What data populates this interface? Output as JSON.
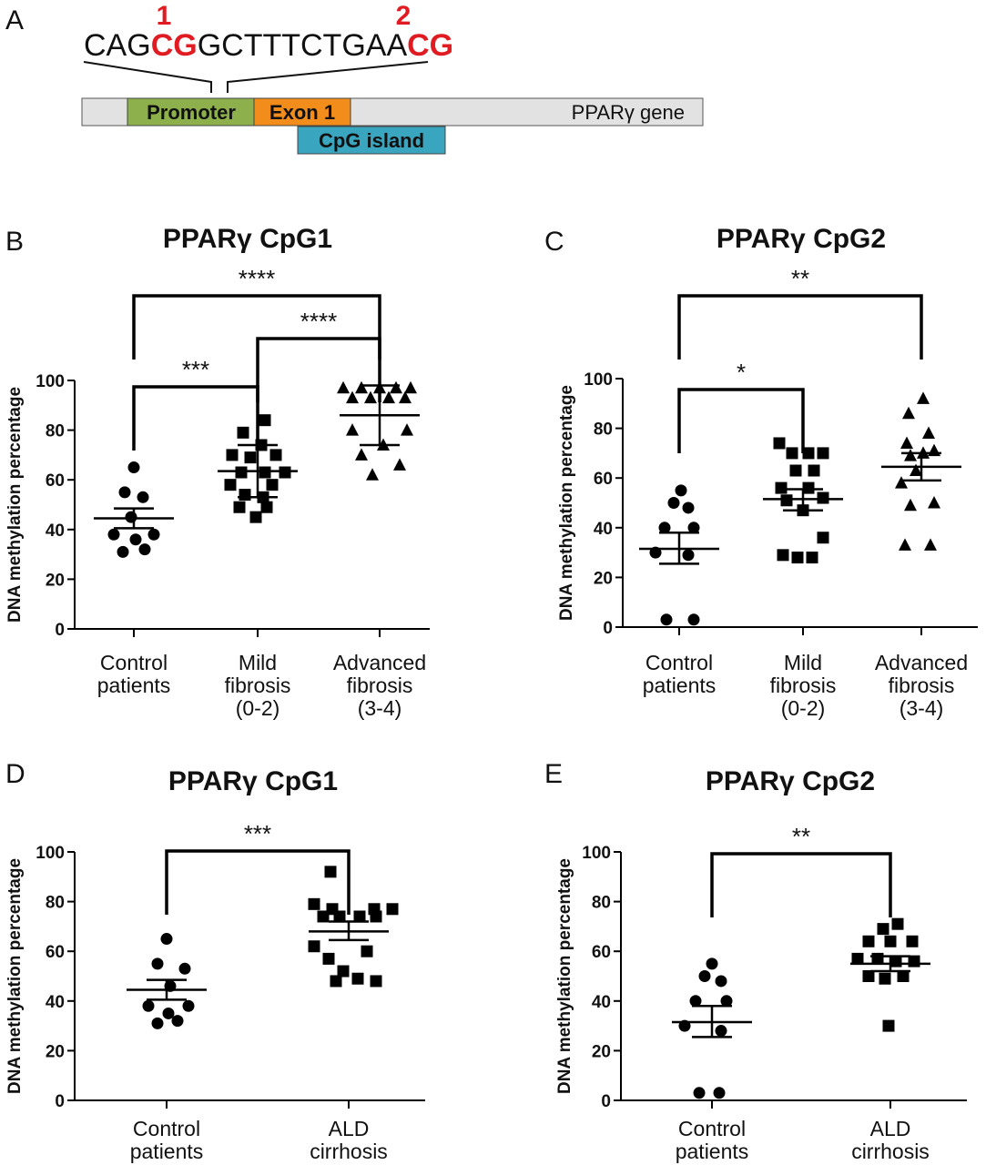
{
  "panel_a": {
    "label": "A",
    "sequence": [
      {
        "text": "CAG",
        "highlight": false
      },
      {
        "text": "CG",
        "highlight": true,
        "number": "1"
      },
      {
        "text": "GCTTTCTGAA",
        "highlight": false
      },
      {
        "text": "CG",
        "highlight": true,
        "number": "2"
      }
    ],
    "gene_name": "PPARγ gene",
    "promoter_label": "Promoter",
    "exon_label": "Exon 1",
    "cpg_island_label": "CpG island",
    "colors": {
      "promoter": "#8db04d",
      "exon": "#f28c1b",
      "cpg_island": "#3aa5bf",
      "gene_bar": "#e2e2e2",
      "cg_highlight": "#e01b22"
    }
  },
  "chart_data": [
    {
      "panel": "B",
      "type": "scatter",
      "title": "PPARγ CpG1",
      "ylabel": "DNA methylation percentage",
      "ylim": [
        0,
        100
      ],
      "yticks": [
        0,
        20,
        40,
        60,
        80,
        100
      ],
      "categories": [
        {
          "lines": [
            "Control",
            "patients"
          ]
        },
        {
          "lines": [
            "Mild",
            "fibrosis",
            "(0-2)"
          ]
        },
        {
          "lines": [
            "Advanced",
            "fibrosis",
            "(3-4)"
          ]
        }
      ],
      "groups": [
        {
          "marker": "circle",
          "mean": 44.5,
          "sem": [
            40.5,
            48.5
          ],
          "points": [
            {
              "dx": 0,
              "y": 65
            },
            {
              "dx": -10,
              "y": 55
            },
            {
              "dx": 10,
              "y": 53
            },
            {
              "dx": -3,
              "y": 45
            },
            {
              "dx": -22,
              "y": 38
            },
            {
              "dx": 22,
              "y": 38
            },
            {
              "dx": 2,
              "y": 36
            },
            {
              "dx": -12,
              "y": 31
            },
            {
              "dx": 12,
              "y": 32
            }
          ]
        },
        {
          "marker": "square",
          "mean": 63.5,
          "sem": [
            53,
            74
          ],
          "points": [
            {
              "dx": 8,
              "y": 84
            },
            {
              "dx": -16,
              "y": 79
            },
            {
              "dx": 4,
              "y": 74
            },
            {
              "dx": -28,
              "y": 70
            },
            {
              "dx": 20,
              "y": 70
            },
            {
              "dx": -8,
              "y": 69
            },
            {
              "dx": -18,
              "y": 63
            },
            {
              "dx": 8,
              "y": 63
            },
            {
              "dx": 30,
              "y": 63
            },
            {
              "dx": -30,
              "y": 58
            },
            {
              "dx": 16,
              "y": 58
            },
            {
              "dx": -14,
              "y": 54
            },
            {
              "dx": 6,
              "y": 53
            },
            {
              "dx": -20,
              "y": 49
            },
            {
              "dx": 10,
              "y": 49
            },
            {
              "dx": -2,
              "y": 45
            }
          ]
        },
        {
          "marker": "triangle",
          "mean": 86,
          "sem": [
            74,
            98
          ],
          "points": [
            {
              "dx": -40,
              "y": 97
            },
            {
              "dx": -20,
              "y": 97
            },
            {
              "dx": 0,
              "y": 97
            },
            {
              "dx": 18,
              "y": 97
            },
            {
              "dx": 34,
              "y": 97
            },
            {
              "dx": -30,
              "y": 93
            },
            {
              "dx": -10,
              "y": 93
            },
            {
              "dx": 10,
              "y": 93
            },
            {
              "dx": 28,
              "y": 93
            },
            {
              "dx": -30,
              "y": 80
            },
            {
              "dx": 30,
              "y": 80
            },
            {
              "dx": 4,
              "y": 74
            },
            {
              "dx": -20,
              "y": 70
            },
            {
              "dx": 22,
              "y": 66
            },
            {
              "dx": -8,
              "y": 62
            }
          ]
        }
      ],
      "comparisons": [
        {
          "from": 0,
          "to": 2,
          "label": "****",
          "level": 0
        },
        {
          "from": 1,
          "to": 2,
          "label": "****",
          "level": 1
        },
        {
          "from": 0,
          "to": 1,
          "label": "***",
          "level": 2
        }
      ]
    },
    {
      "panel": "C",
      "type": "scatter",
      "title": "PPARγ CpG2",
      "ylabel": "DNA methylation percentage",
      "ylim": [
        0,
        100
      ],
      "yticks": [
        0,
        20,
        40,
        60,
        80,
        100
      ],
      "categories": [
        {
          "lines": [
            "Control",
            "patients"
          ]
        },
        {
          "lines": [
            "Mild",
            "fibrosis",
            "(0-2)"
          ]
        },
        {
          "lines": [
            "Advanced",
            "fibrosis",
            "(3-4)"
          ]
        }
      ],
      "groups": [
        {
          "marker": "circle",
          "mean": 31.5,
          "sem": [
            25.5,
            38
          ],
          "points": [
            {
              "dx": 2,
              "y": 55
            },
            {
              "dx": -6,
              "y": 50
            },
            {
              "dx": 10,
              "y": 48
            },
            {
              "dx": -16,
              "y": 40
            },
            {
              "dx": 16,
              "y": 40
            },
            {
              "dx": -26,
              "y": 30
            },
            {
              "dx": 10,
              "y": 29
            },
            {
              "dx": -14,
              "y": 3
            },
            {
              "dx": 16,
              "y": 3
            }
          ]
        },
        {
          "marker": "square",
          "mean": 51.5,
          "sem": [
            47,
            55.5
          ],
          "points": [
            {
              "dx": -26,
              "y": 74
            },
            {
              "dx": -12,
              "y": 70
            },
            {
              "dx": 6,
              "y": 70
            },
            {
              "dx": 22,
              "y": 70
            },
            {
              "dx": -8,
              "y": 63
            },
            {
              "dx": 12,
              "y": 63
            },
            {
              "dx": -24,
              "y": 56
            },
            {
              "dx": 6,
              "y": 56
            },
            {
              "dx": 22,
              "y": 52
            },
            {
              "dx": -18,
              "y": 51
            },
            {
              "dx": 0,
              "y": 47
            },
            {
              "dx": 22,
              "y": 36
            },
            {
              "dx": -22,
              "y": 29
            },
            {
              "dx": -6,
              "y": 28
            },
            {
              "dx": 10,
              "y": 28
            }
          ]
        },
        {
          "marker": "triangle",
          "mean": 64.5,
          "sem": [
            59,
            70
          ],
          "points": [
            {
              "dx": 2,
              "y": 92
            },
            {
              "dx": -14,
              "y": 86
            },
            {
              "dx": 8,
              "y": 78
            },
            {
              "dx": -16,
              "y": 74
            },
            {
              "dx": 2,
              "y": 70
            },
            {
              "dx": -12,
              "y": 69
            },
            {
              "dx": 14,
              "y": 71
            },
            {
              "dx": -6,
              "y": 63
            },
            {
              "dx": -22,
              "y": 58
            },
            {
              "dx": 14,
              "y": 50
            },
            {
              "dx": -12,
              "y": 49
            },
            {
              "dx": -18,
              "y": 33
            },
            {
              "dx": 10,
              "y": 33
            }
          ]
        }
      ],
      "comparisons": [
        {
          "from": 0,
          "to": 2,
          "label": "**",
          "level": 0
        },
        {
          "from": 0,
          "to": 1,
          "label": "*",
          "level": 1
        }
      ]
    },
    {
      "panel": "D",
      "type": "scatter",
      "title": "PPARγ CpG1",
      "ylabel": "DNA methylation percentage",
      "ylim": [
        0,
        100
      ],
      "yticks": [
        0,
        20,
        40,
        60,
        80,
        100
      ],
      "categories": [
        {
          "lines": [
            "Control",
            "patients"
          ]
        },
        {
          "lines": [
            "ALD",
            "cirrhosis"
          ]
        }
      ],
      "groups": [
        {
          "marker": "circle",
          "mean": 44.5,
          "sem": [
            40.5,
            48.5
          ],
          "points": [
            {
              "dx": 0,
              "y": 65
            },
            {
              "dx": -10,
              "y": 55
            },
            {
              "dx": 20,
              "y": 53
            },
            {
              "dx": 4,
              "y": 46
            },
            {
              "dx": -20,
              "y": 38
            },
            {
              "dx": 24,
              "y": 38
            },
            {
              "dx": 2,
              "y": 35
            },
            {
              "dx": -10,
              "y": 31
            },
            {
              "dx": 12,
              "y": 32
            }
          ]
        },
        {
          "marker": "square",
          "mean": 68,
          "sem": [
            64.5,
            72
          ],
          "points": [
            {
              "dx": -20,
              "y": 92
            },
            {
              "dx": -38,
              "y": 79
            },
            {
              "dx": -18,
              "y": 77
            },
            {
              "dx": 28,
              "y": 77
            },
            {
              "dx": 48,
              "y": 77
            },
            {
              "dx": -28,
              "y": 74
            },
            {
              "dx": -10,
              "y": 74
            },
            {
              "dx": 12,
              "y": 74
            },
            {
              "dx": 30,
              "y": 74
            },
            {
              "dx": -38,
              "y": 62
            },
            {
              "dx": 20,
              "y": 60
            },
            {
              "dx": -22,
              "y": 57
            },
            {
              "dx": -6,
              "y": 52
            },
            {
              "dx": 10,
              "y": 49
            },
            {
              "dx": -14,
              "y": 48
            },
            {
              "dx": 30,
              "y": 48
            }
          ]
        }
      ],
      "comparisons": [
        {
          "from": 0,
          "to": 1,
          "label": "***",
          "level": 0
        }
      ]
    },
    {
      "panel": "E",
      "type": "scatter",
      "title": "PPARγ CpG2",
      "ylabel": "DNA methylation percentage",
      "ylim": [
        0,
        100
      ],
      "yticks": [
        0,
        20,
        40,
        60,
        80,
        100
      ],
      "categories": [
        {
          "lines": [
            "Control",
            "patients"
          ]
        },
        {
          "lines": [
            "ALD",
            "cirrhosis"
          ]
        }
      ],
      "groups": [
        {
          "marker": "circle",
          "mean": 31.5,
          "sem": [
            25.5,
            38
          ],
          "points": [
            {
              "dx": 0,
              "y": 55
            },
            {
              "dx": -8,
              "y": 50
            },
            {
              "dx": 10,
              "y": 48
            },
            {
              "dx": -18,
              "y": 40
            },
            {
              "dx": 16,
              "y": 40
            },
            {
              "dx": -30,
              "y": 30
            },
            {
              "dx": 10,
              "y": 28
            },
            {
              "dx": -14,
              "y": 3
            },
            {
              "dx": 8,
              "y": 3
            }
          ]
        },
        {
          "marker": "square",
          "mean": 55,
          "sem": [
            52,
            58
          ],
          "points": [
            {
              "dx": 8,
              "y": 71
            },
            {
              "dx": -8,
              "y": 69
            },
            {
              "dx": -24,
              "y": 64
            },
            {
              "dx": 0,
              "y": 64
            },
            {
              "dx": 24,
              "y": 64
            },
            {
              "dx": -36,
              "y": 57
            },
            {
              "dx": -14,
              "y": 57
            },
            {
              "dx": 6,
              "y": 56
            },
            {
              "dx": 26,
              "y": 56
            },
            {
              "dx": -24,
              "y": 50
            },
            {
              "dx": -6,
              "y": 49
            },
            {
              "dx": 14,
              "y": 50
            },
            {
              "dx": -2,
              "y": 30
            }
          ]
        }
      ],
      "comparisons": [
        {
          "from": 0,
          "to": 1,
          "label": "**",
          "level": 0
        }
      ]
    }
  ]
}
